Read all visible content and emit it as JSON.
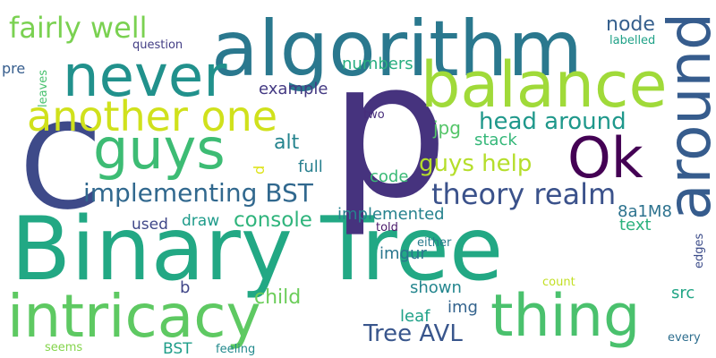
{
  "words": [
    {
      "text": "Binary Tree",
      "color": "#22a884"
    },
    {
      "text": "p",
      "color": "#46337e"
    },
    {
      "text": "algorithm",
      "color": "#2a788e"
    },
    {
      "text": "C",
      "color": "#3e4a89"
    },
    {
      "text": "balance",
      "color": "#a0da39"
    },
    {
      "text": "intricacy",
      "color": "#5ec962"
    },
    {
      "text": "thing",
      "color": "#4ac16d"
    },
    {
      "text": "never",
      "color": "#21918c"
    },
    {
      "text": "guys",
      "color": "#3dbc74"
    },
    {
      "text": "around",
      "color": "#365c8d"
    },
    {
      "text": "Ok",
      "color": "#440154"
    },
    {
      "text": "another one",
      "color": "#d0e11c"
    },
    {
      "text": "fairly well",
      "color": "#7ad151"
    },
    {
      "text": "implementing BST",
      "color": "#31688e"
    },
    {
      "text": "theory realm",
      "color": "#3b528b"
    },
    {
      "text": "head around",
      "color": "#1f988b"
    },
    {
      "text": "guys help",
      "color": "#b5de2b"
    },
    {
      "text": "Tree AVL",
      "color": "#39568c"
    },
    {
      "text": "console",
      "color": "#2fb47c"
    },
    {
      "text": "node",
      "color": "#355f8d"
    },
    {
      "text": "example",
      "color": "#443a83"
    },
    {
      "text": "alt",
      "color": "#25848e"
    },
    {
      "text": "child",
      "color": "#6ccd5a"
    },
    {
      "text": "numbers",
      "color": "#28ae80"
    },
    {
      "text": "stack",
      "color": "#35b779"
    },
    {
      "text": "jpg",
      "color": "#54c568"
    },
    {
      "text": "full",
      "color": "#277f8e"
    },
    {
      "text": "code",
      "color": "#3aba76"
    },
    {
      "text": "implemented",
      "color": "#26828e"
    },
    {
      "text": "8a1M8",
      "color": "#2c728e"
    },
    {
      "text": "text",
      "color": "#2db27d"
    },
    {
      "text": "used",
      "color": "#3f4788"
    },
    {
      "text": "draw",
      "color": "#1e9b8a"
    },
    {
      "text": "imgur",
      "color": "#2a768e"
    },
    {
      "text": "shown",
      "color": "#24868e"
    },
    {
      "text": "img",
      "color": "#33638d"
    },
    {
      "text": "leaf",
      "color": "#1fa188"
    },
    {
      "text": "src",
      "color": "#21a585"
    },
    {
      "text": "BST",
      "color": "#1f9e89"
    },
    {
      "text": "b",
      "color": "#404688"
    },
    {
      "text": "d",
      "color": "#dde318"
    },
    {
      "text": "pre",
      "color": "#365d8d"
    },
    {
      "text": "two",
      "color": "#472d7b"
    },
    {
      "text": "question",
      "color": "#433e85"
    },
    {
      "text": "labelled",
      "color": "#1fa187"
    },
    {
      "text": "leaves",
      "color": "#48c16e"
    },
    {
      "text": "told",
      "color": "#481769"
    },
    {
      "text": "either",
      "color": "#2a7b8e"
    },
    {
      "text": "edges",
      "color": "#3d4d8a"
    },
    {
      "text": "count",
      "color": "#c2df23"
    },
    {
      "text": "seems",
      "color": "#84d44b"
    },
    {
      "text": "feeling",
      "color": "#238a8d"
    },
    {
      "text": "every",
      "color": "#2e6e8e"
    }
  ]
}
